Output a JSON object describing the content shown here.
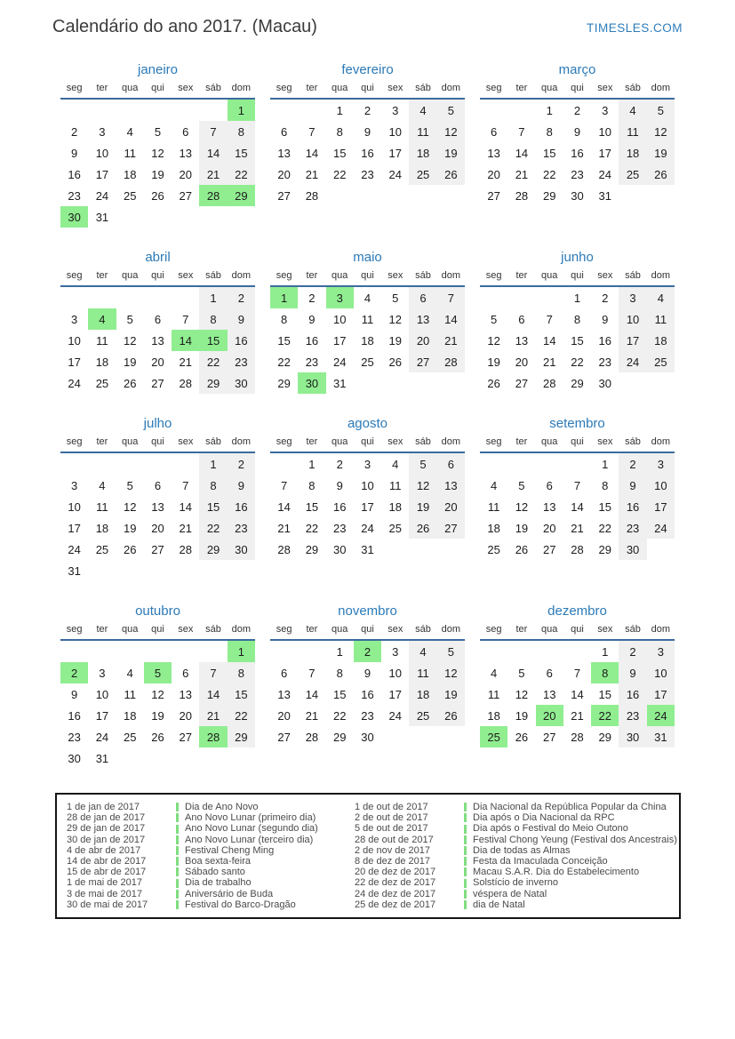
{
  "header": {
    "title": "Calendário do ano 2017. (Macau)",
    "site": "TIMESLES.COM"
  },
  "weekdays": [
    "seg",
    "ter",
    "qua",
    "qui",
    "sex",
    "sáb",
    "dom"
  ],
  "months": [
    {
      "name": "janeiro",
      "holidays": [
        1,
        28,
        29,
        30
      ],
      "weeks": [
        [
          "",
          "",
          "",
          "",
          "",
          "",
          1
        ],
        [
          2,
          3,
          4,
          5,
          6,
          7,
          8
        ],
        [
          9,
          10,
          11,
          12,
          13,
          14,
          15
        ],
        [
          16,
          17,
          18,
          19,
          20,
          21,
          22
        ],
        [
          23,
          24,
          25,
          26,
          27,
          28,
          29
        ],
        [
          30,
          31,
          "",
          "",
          "",
          "",
          ""
        ]
      ]
    },
    {
      "name": "fevereiro",
      "holidays": [],
      "weeks": [
        [
          "",
          "",
          1,
          2,
          3,
          4,
          5
        ],
        [
          6,
          7,
          8,
          9,
          10,
          11,
          12
        ],
        [
          13,
          14,
          15,
          16,
          17,
          18,
          19
        ],
        [
          20,
          21,
          22,
          23,
          24,
          25,
          26
        ],
        [
          27,
          28,
          "",
          "",
          "",
          "",
          ""
        ]
      ]
    },
    {
      "name": "março",
      "holidays": [],
      "weeks": [
        [
          "",
          "",
          1,
          2,
          3,
          4,
          5
        ],
        [
          6,
          7,
          8,
          9,
          10,
          11,
          12
        ],
        [
          13,
          14,
          15,
          16,
          17,
          18,
          19
        ],
        [
          20,
          21,
          22,
          23,
          24,
          25,
          26
        ],
        [
          27,
          28,
          29,
          30,
          31,
          "",
          ""
        ]
      ]
    },
    {
      "name": "abril",
      "holidays": [
        4,
        14,
        15
      ],
      "weeks": [
        [
          "",
          "",
          "",
          "",
          "",
          1,
          2
        ],
        [
          3,
          4,
          5,
          6,
          7,
          8,
          9
        ],
        [
          10,
          11,
          12,
          13,
          14,
          15,
          16
        ],
        [
          17,
          18,
          19,
          20,
          21,
          22,
          23
        ],
        [
          24,
          25,
          26,
          27,
          28,
          29,
          30
        ]
      ]
    },
    {
      "name": "maio",
      "holidays": [
        1,
        3,
        30
      ],
      "weeks": [
        [
          1,
          2,
          3,
          4,
          5,
          6,
          7
        ],
        [
          8,
          9,
          10,
          11,
          12,
          13,
          14
        ],
        [
          15,
          16,
          17,
          18,
          19,
          20,
          21
        ],
        [
          22,
          23,
          24,
          25,
          26,
          27,
          28
        ],
        [
          29,
          30,
          31,
          "",
          "",
          "",
          ""
        ]
      ]
    },
    {
      "name": "junho",
      "holidays": [],
      "weeks": [
        [
          "",
          "",
          "",
          1,
          2,
          3,
          4
        ],
        [
          5,
          6,
          7,
          8,
          9,
          10,
          11
        ],
        [
          12,
          13,
          14,
          15,
          16,
          17,
          18
        ],
        [
          19,
          20,
          21,
          22,
          23,
          24,
          25
        ],
        [
          26,
          27,
          28,
          29,
          30,
          "",
          ""
        ]
      ]
    },
    {
      "name": "julho",
      "holidays": [],
      "weeks": [
        [
          "",
          "",
          "",
          "",
          "",
          1,
          2
        ],
        [
          3,
          4,
          5,
          6,
          7,
          8,
          9
        ],
        [
          10,
          11,
          12,
          13,
          14,
          15,
          16
        ],
        [
          17,
          18,
          19,
          20,
          21,
          22,
          23
        ],
        [
          24,
          25,
          26,
          27,
          28,
          29,
          30
        ],
        [
          31,
          "",
          "",
          "",
          "",
          "",
          ""
        ]
      ]
    },
    {
      "name": "agosto",
      "holidays": [],
      "weeks": [
        [
          "",
          1,
          2,
          3,
          4,
          5,
          6
        ],
        [
          7,
          8,
          9,
          10,
          11,
          12,
          13
        ],
        [
          14,
          15,
          16,
          17,
          18,
          19,
          20
        ],
        [
          21,
          22,
          23,
          24,
          25,
          26,
          27
        ],
        [
          28,
          29,
          30,
          31,
          "",
          "",
          ""
        ]
      ]
    },
    {
      "name": "setembro",
      "holidays": [],
      "weeks": [
        [
          "",
          "",
          "",
          "",
          1,
          2,
          3
        ],
        [
          4,
          5,
          6,
          7,
          8,
          9,
          10
        ],
        [
          11,
          12,
          13,
          14,
          15,
          16,
          17
        ],
        [
          18,
          19,
          20,
          21,
          22,
          23,
          24
        ],
        [
          25,
          26,
          27,
          28,
          29,
          30,
          ""
        ]
      ]
    },
    {
      "name": "outubro",
      "holidays": [
        1,
        2,
        5,
        28
      ],
      "weeks": [
        [
          "",
          "",
          "",
          "",
          "",
          "",
          1
        ],
        [
          2,
          3,
          4,
          5,
          6,
          7,
          8
        ],
        [
          9,
          10,
          11,
          12,
          13,
          14,
          15
        ],
        [
          16,
          17,
          18,
          19,
          20,
          21,
          22
        ],
        [
          23,
          24,
          25,
          26,
          27,
          28,
          29
        ],
        [
          30,
          31,
          "",
          "",
          "",
          "",
          ""
        ]
      ]
    },
    {
      "name": "novembro",
      "holidays": [
        2
      ],
      "weeks": [
        [
          "",
          "",
          1,
          2,
          3,
          4,
          5
        ],
        [
          6,
          7,
          8,
          9,
          10,
          11,
          12
        ],
        [
          13,
          14,
          15,
          16,
          17,
          18,
          19
        ],
        [
          20,
          21,
          22,
          23,
          24,
          25,
          26
        ],
        [
          27,
          28,
          29,
          30,
          "",
          "",
          ""
        ]
      ]
    },
    {
      "name": "dezembro",
      "holidays": [
        8,
        20,
        22,
        24,
        25
      ],
      "weeks": [
        [
          "",
          "",
          "",
          "",
          1,
          2,
          3
        ],
        [
          4,
          5,
          6,
          7,
          8,
          9,
          10
        ],
        [
          11,
          12,
          13,
          14,
          15,
          16,
          17
        ],
        [
          18,
          19,
          20,
          21,
          22,
          23,
          24
        ],
        [
          25,
          26,
          27,
          28,
          29,
          30,
          31
        ]
      ]
    }
  ],
  "legend": {
    "columns": [
      {
        "entries": [
          {
            "date": "1 de jan de 2017",
            "name": "Dia de Ano Novo"
          },
          {
            "date": "28 de jan de 2017",
            "name": "Ano Novo Lunar (primeiro dia)"
          },
          {
            "date": "29 de jan de 2017",
            "name": "Ano Novo Lunar (segundo dia)"
          },
          {
            "date": "30 de jan de 2017",
            "name": "Ano Novo Lunar (terceiro dia)"
          },
          {
            "date": "4 de abr de 2017",
            "name": "Festival Cheng Ming"
          },
          {
            "date": "14 de abr de 2017",
            "name": "Boa sexta-feira"
          },
          {
            "date": "15 de abr de 2017",
            "name": "Sábado santo"
          },
          {
            "date": "1 de mai de 2017",
            "name": "Dia de trabalho"
          },
          {
            "date": "3 de mai de 2017",
            "name": "Aniversário de Buda"
          },
          {
            "date": "30 de mai de 2017",
            "name": "Festival do Barco-Dragão"
          }
        ]
      },
      {
        "entries": [
          {
            "date": "1 de out de 2017",
            "name": "Dia Nacional da República Popular da China"
          },
          {
            "date": "2 de out de 2017",
            "name": "Dia após o Dia Nacional da RPC"
          },
          {
            "date": "5 de out de 2017",
            "name": "Dia após o Festival do Meio Outono"
          },
          {
            "date": "28 de out de 2017",
            "name": "Festival Chong Yeung (Festival dos Ancestrais)"
          },
          {
            "date": "2 de nov de 2017",
            "name": "Dia de todas as Almas"
          },
          {
            "date": "8 de dez de 2017",
            "name": "Festa da Imaculada Conceição"
          },
          {
            "date": "20 de dez de 2017",
            "name": "Macau S.A.R. Dia do Estabelecimento"
          },
          {
            "date": "22 de dez de 2017",
            "name": "Solstício de inverno"
          },
          {
            "date": "24 de dez de 2017",
            "name": "véspera de Natal"
          },
          {
            "date": "25 de dez de 2017",
            "name": "dia de Natal"
          }
        ]
      }
    ]
  },
  "colors": {
    "accent_blue": "#2b7ab8",
    "header_line_blue": "#3b6b9d",
    "holiday_green": "#90ee90",
    "weekend_gray": "#f0f0f0",
    "legend_bar_green": "#80de80"
  }
}
